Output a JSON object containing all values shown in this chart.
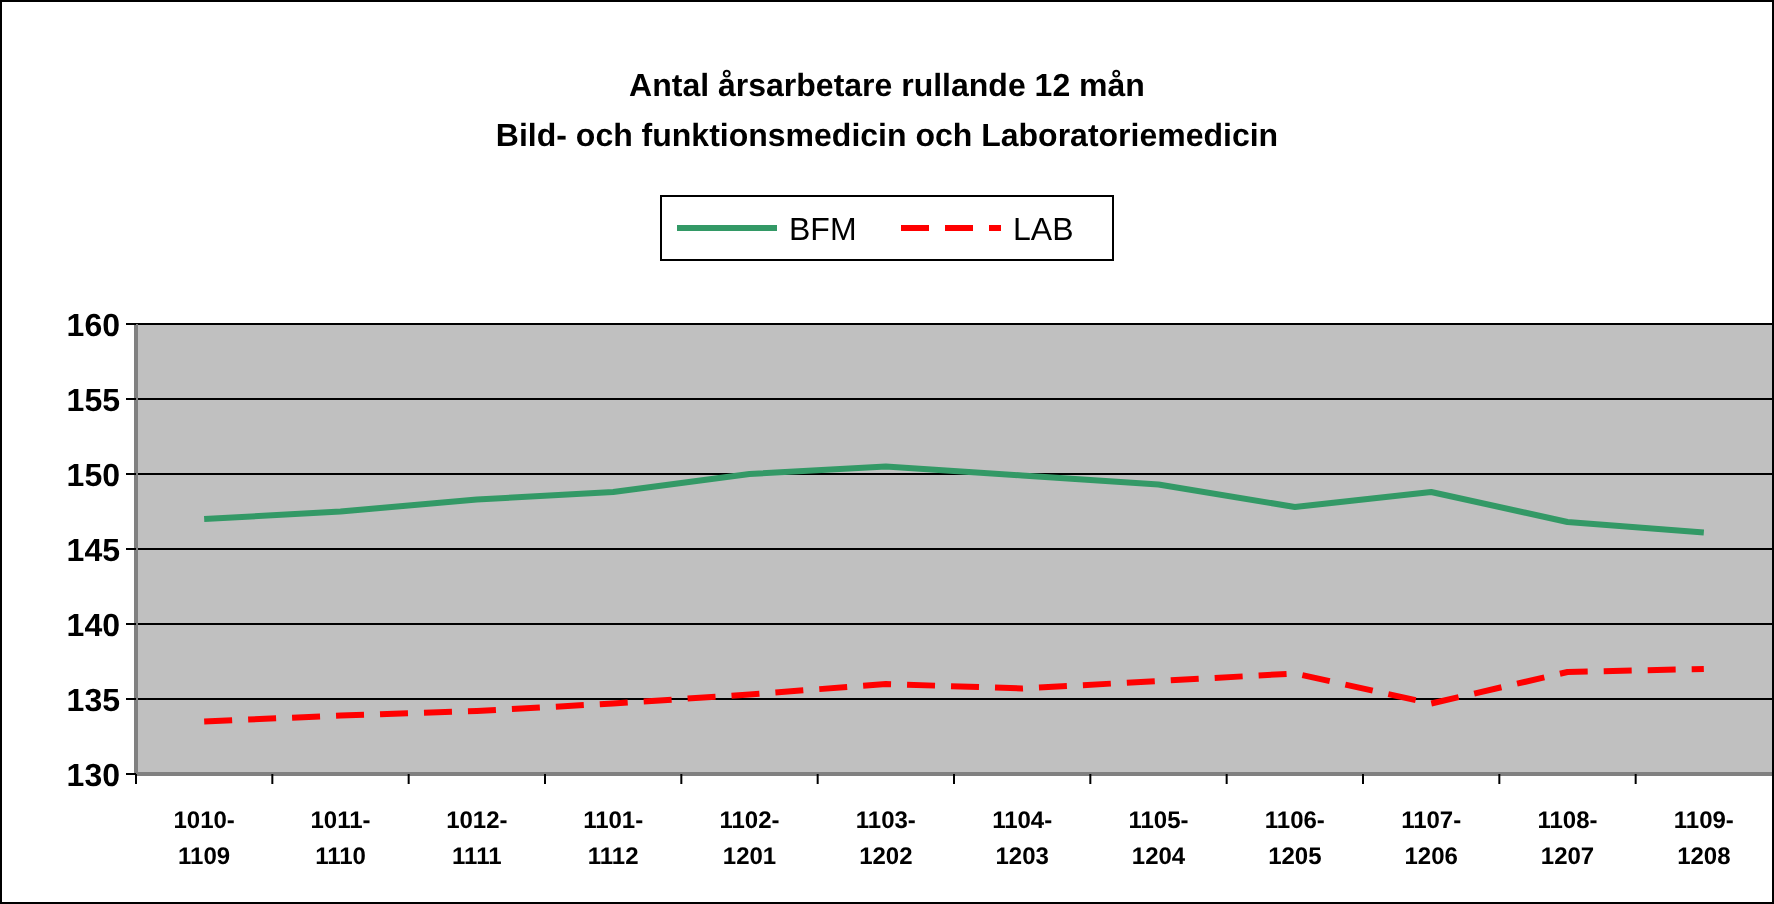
{
  "chart_data": {
    "type": "line",
    "title": "Antal årsarbetare rullande 12 mån",
    "subtitle": "Bild- och funktionsmedicin och Laboratoriemedicin",
    "categories": [
      "1010-1109",
      "1011-1110",
      "1012-1111",
      "1101-1112",
      "1102-1201",
      "1103-1202",
      "1104-1203",
      "1105-1204",
      "1106-1205",
      "1107-1206",
      "1108-1207",
      "1109-1208"
    ],
    "series": [
      {
        "name": "BFM",
        "color": "#339966",
        "line_style": "solid",
        "values": [
          147.0,
          147.5,
          148.3,
          148.8,
          150.0,
          150.5,
          149.9,
          149.3,
          147.8,
          148.8,
          146.8,
          146.1
        ]
      },
      {
        "name": "LAB",
        "color": "#ff0000",
        "line_style": "dashed",
        "values": [
          133.5,
          133.9,
          134.2,
          134.7,
          135.3,
          136.0,
          135.7,
          136.2,
          136.7,
          134.7,
          136.8,
          137.0
        ]
      }
    ],
    "ylim": [
      130,
      160
    ],
    "yticks": [
      130,
      135,
      140,
      145,
      150,
      155,
      160
    ],
    "grid": "y",
    "legend": "top"
  }
}
